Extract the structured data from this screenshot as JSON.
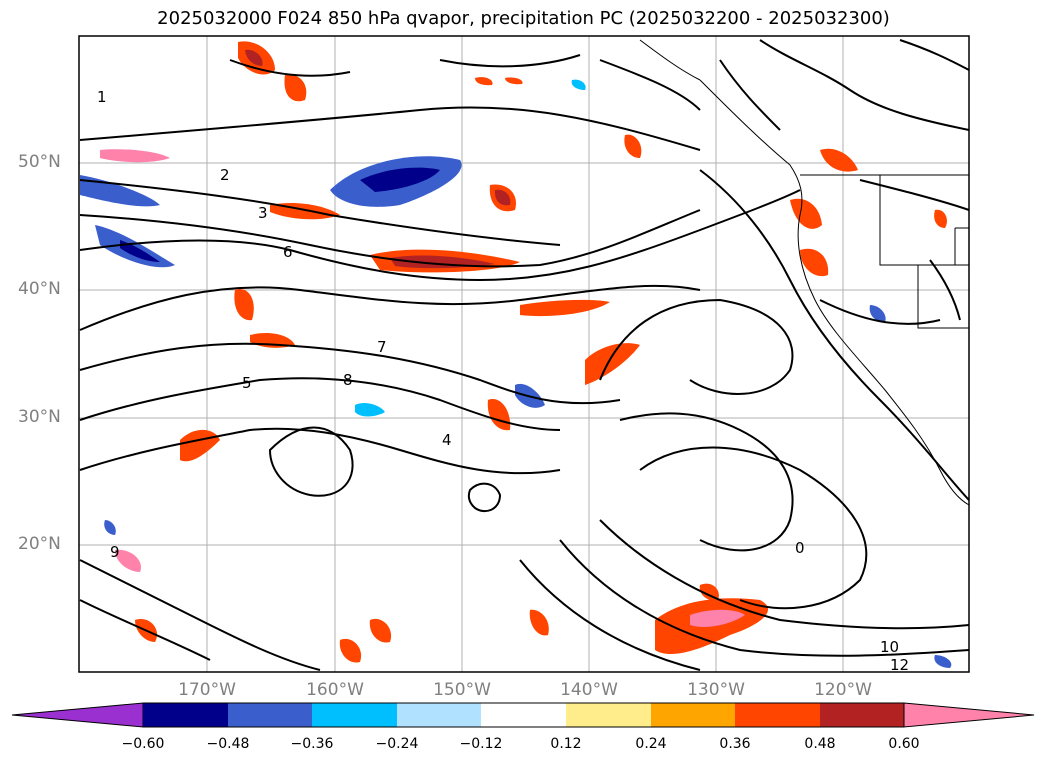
{
  "title": "2025032000 F024 850 hPa qvapor, precipitation PC (2025032200 - 2025032300)",
  "map": {
    "lat_labels": [
      "50°N",
      "40°N",
      "30°N",
      "20°N"
    ],
    "lon_labels": [
      "170°W",
      "160°W",
      "150°W",
      "140°W",
      "130°W",
      "120°W"
    ],
    "grid": true,
    "contour_color": "#000000",
    "contour_labels": [
      "0",
      "1",
      "2",
      "3",
      "4",
      "5",
      "6",
      "7",
      "8",
      "9",
      "10",
      "12"
    ]
  },
  "colorbar": {
    "orientation": "horizontal",
    "extend": "both",
    "ticks": [
      "−0.60",
      "−0.48",
      "−0.36",
      "−0.24",
      "−0.12",
      "0.12",
      "0.24",
      "0.36",
      "0.48",
      "0.60"
    ],
    "colors": [
      "#9b30d0",
      "#00008b",
      "#3a5fcd",
      "#00bfff",
      "#b0e2ff",
      "#ffffff",
      "#ffec8b",
      "#ffa500",
      "#ff4500",
      "#b22222",
      "#ff82ab"
    ]
  }
}
